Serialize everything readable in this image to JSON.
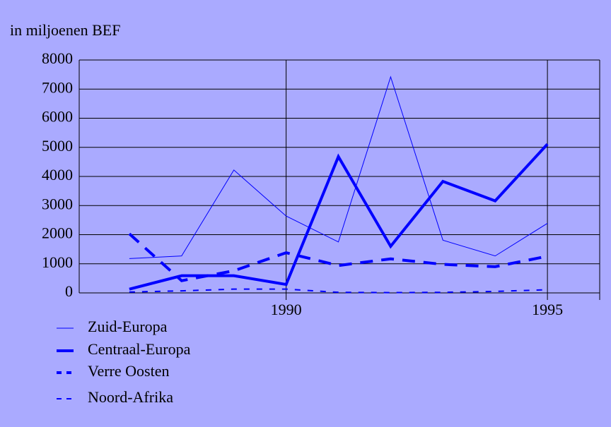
{
  "chart_data": {
    "type": "line",
    "y_label": "in miljoenen BEF",
    "x": [
      1987,
      1988,
      1989,
      1990,
      1991,
      1992,
      1993,
      1994,
      1995
    ],
    "xlim": [
      1986,
      1996
    ],
    "xticks": [
      1990,
      1995
    ],
    "ylim": [
      0,
      8000
    ],
    "yticks": [
      0,
      1000,
      2000,
      3000,
      4000,
      5000,
      6000,
      7000,
      8000
    ],
    "grid": true,
    "series": [
      {
        "name": "Zuid-Europa",
        "color": "#0000ff",
        "width": 1,
        "dash": "solid",
        "values": [
          1180,
          1270,
          4220,
          2640,
          1750,
          7420,
          1810,
          1270,
          2390
        ]
      },
      {
        "name": "Centraal-Europa",
        "color": "#0000ff",
        "width": 4,
        "dash": "solid",
        "values": [
          130,
          590,
          590,
          290,
          4680,
          1600,
          3830,
          3160,
          5110
        ]
      },
      {
        "name": "Verre Oosten",
        "color": "#0000ff",
        "width": 4,
        "dash": "dashed",
        "values": [
          2030,
          420,
          760,
          1380,
          940,
          1170,
          980,
          900,
          1260
        ]
      },
      {
        "name": "Noord-Afrika",
        "color": "#0000ff",
        "width": 2,
        "dash": "dashed",
        "values": [
          30,
          70,
          130,
          130,
          20,
          10,
          20,
          50,
          110
        ]
      }
    ]
  }
}
